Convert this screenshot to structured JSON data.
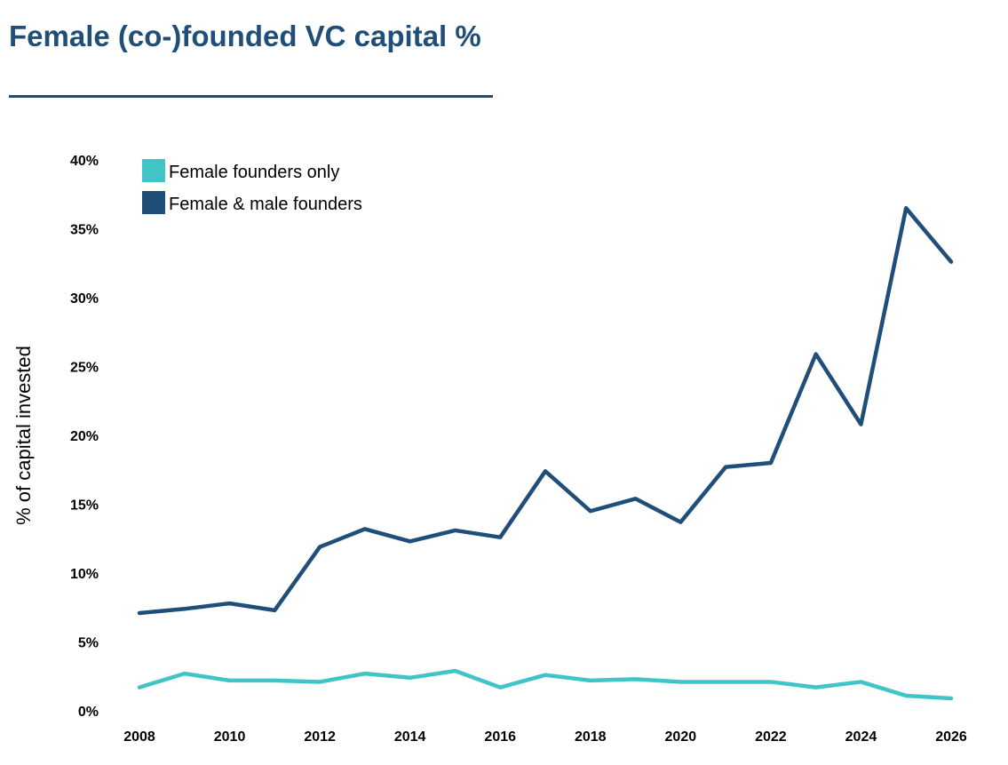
{
  "header": {
    "title": "Female (co-)founded VC capital %"
  },
  "chart_data": {
    "type": "line",
    "title": "Female (co-)founded VC capital %",
    "xlabel": "",
    "ylabel": "% of capital invested",
    "x": [
      2008,
      2009,
      2010,
      2011,
      2012,
      2013,
      2014,
      2015,
      2016,
      2017,
      2018,
      2019,
      2020,
      2021,
      2022,
      2023,
      2024,
      2025,
      2026
    ],
    "x_tick_labels": [
      "2008",
      "2010",
      "2012",
      "2014",
      "2016",
      "2018",
      "2020",
      "2022",
      "2024",
      "2026"
    ],
    "x_tick_values": [
      2008,
      2010,
      2012,
      2014,
      2016,
      2018,
      2020,
      2022,
      2024,
      2026
    ],
    "xlim": [
      2008,
      2026
    ],
    "y_tick_labels": [
      "0%",
      "5%",
      "10%",
      "15%",
      "20%",
      "25%",
      "30%",
      "35%",
      "40%"
    ],
    "y_tick_values": [
      0,
      5,
      10,
      15,
      20,
      25,
      30,
      35,
      40
    ],
    "ylim": [
      0,
      40
    ],
    "grid": false,
    "legend_position": "top-left",
    "series": [
      {
        "name": "Female founders only",
        "color": "#40c4c8",
        "values": [
          1.7,
          2.7,
          2.2,
          2.2,
          2.1,
          2.7,
          2.4,
          2.9,
          1.7,
          2.6,
          2.2,
          2.3,
          2.1,
          2.1,
          2.1,
          1.7,
          2.1,
          1.1,
          0.9
        ]
      },
      {
        "name": "Female & male founders",
        "color": "#1f4e79",
        "values": [
          7.1,
          7.4,
          7.8,
          7.3,
          11.9,
          13.2,
          12.3,
          13.1,
          12.6,
          17.4,
          14.5,
          15.4,
          13.7,
          17.7,
          18.0,
          25.9,
          20.8,
          36.5,
          32.6
        ]
      }
    ]
  }
}
